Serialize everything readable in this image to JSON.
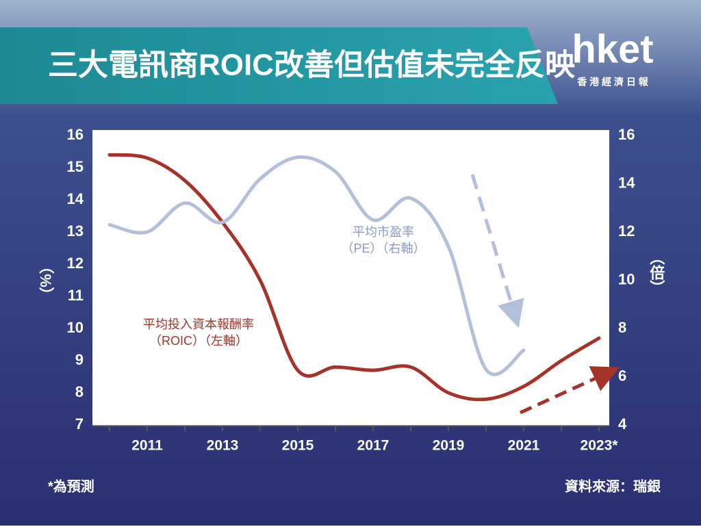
{
  "chart_data": {
    "type": "line",
    "title": "三大電訊商ROIC改善但估值未完全反映",
    "y_label": "（%）",
    "y2_label": "（倍）",
    "categories": [
      null,
      "2011",
      null,
      "2013",
      null,
      "2015",
      null,
      "2017",
      null,
      "2019",
      null,
      "2021",
      null,
      "2023*"
    ],
    "series": [
      {
        "name": "平均投入資本報酬率（ROIC）（左軸）",
        "color": "#a5332a",
        "values": [
          15.4,
          15.3,
          14.6,
          13.3,
          11.5,
          8.7,
          8.8,
          8.7,
          8.8,
          8.0,
          7.8,
          8.2,
          9.0,
          9.7
        ]
      },
      {
        "name": "平均市盈率（PE）（右軸）",
        "color": "#b3c0da",
        "axis": "y2",
        "values": [
          12.3,
          12.0,
          13.2,
          12.4,
          14.2,
          15.1,
          14.5,
          12.5,
          13.4,
          11.4,
          6.3,
          7.1,
          null,
          null
        ]
      }
    ],
    "ylim": [
      7,
      16
    ],
    "yticks": [
      7,
      8,
      9,
      10,
      11,
      12,
      13,
      14,
      15,
      16
    ],
    "y2lim": [
      4,
      16
    ],
    "y2ticks": [
      4,
      6,
      8,
      10,
      12,
      14,
      16
    ],
    "grid": false
  },
  "logo": {
    "name": "hket",
    "subtitle": "香 港 經 濟 日 報"
  },
  "footnote": "*為預測",
  "source": "資料來源：瑞銀"
}
